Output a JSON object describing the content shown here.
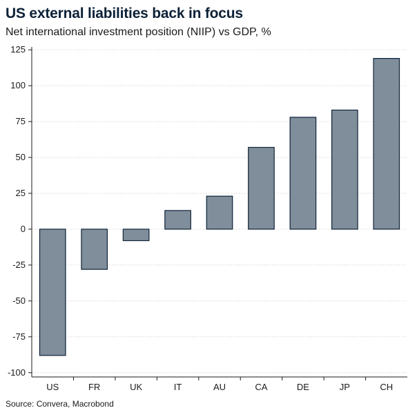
{
  "chart_data": {
    "type": "bar",
    "title": "US external liabilities back in focus",
    "subtitle": "Net international investment position (NIIP) vs GDP, %",
    "source": "Source: Convera, Macrobond",
    "categories": [
      "US",
      "FR",
      "UK",
      "IT",
      "AU",
      "CA",
      "DE",
      "JP",
      "CH"
    ],
    "values": [
      -88,
      -28,
      -8,
      13,
      23,
      57,
      78,
      83,
      119
    ],
    "yticks": [
      125,
      100,
      75,
      50,
      25,
      0,
      -25,
      -50,
      -75,
      -100
    ],
    "ylim": [
      -100,
      125
    ],
    "xlabel": "",
    "ylabel": "",
    "grid": true,
    "bar_color": "#7f8e9a",
    "bar_edge_color": "#0d2137",
    "grid_color": "#dddddd"
  }
}
